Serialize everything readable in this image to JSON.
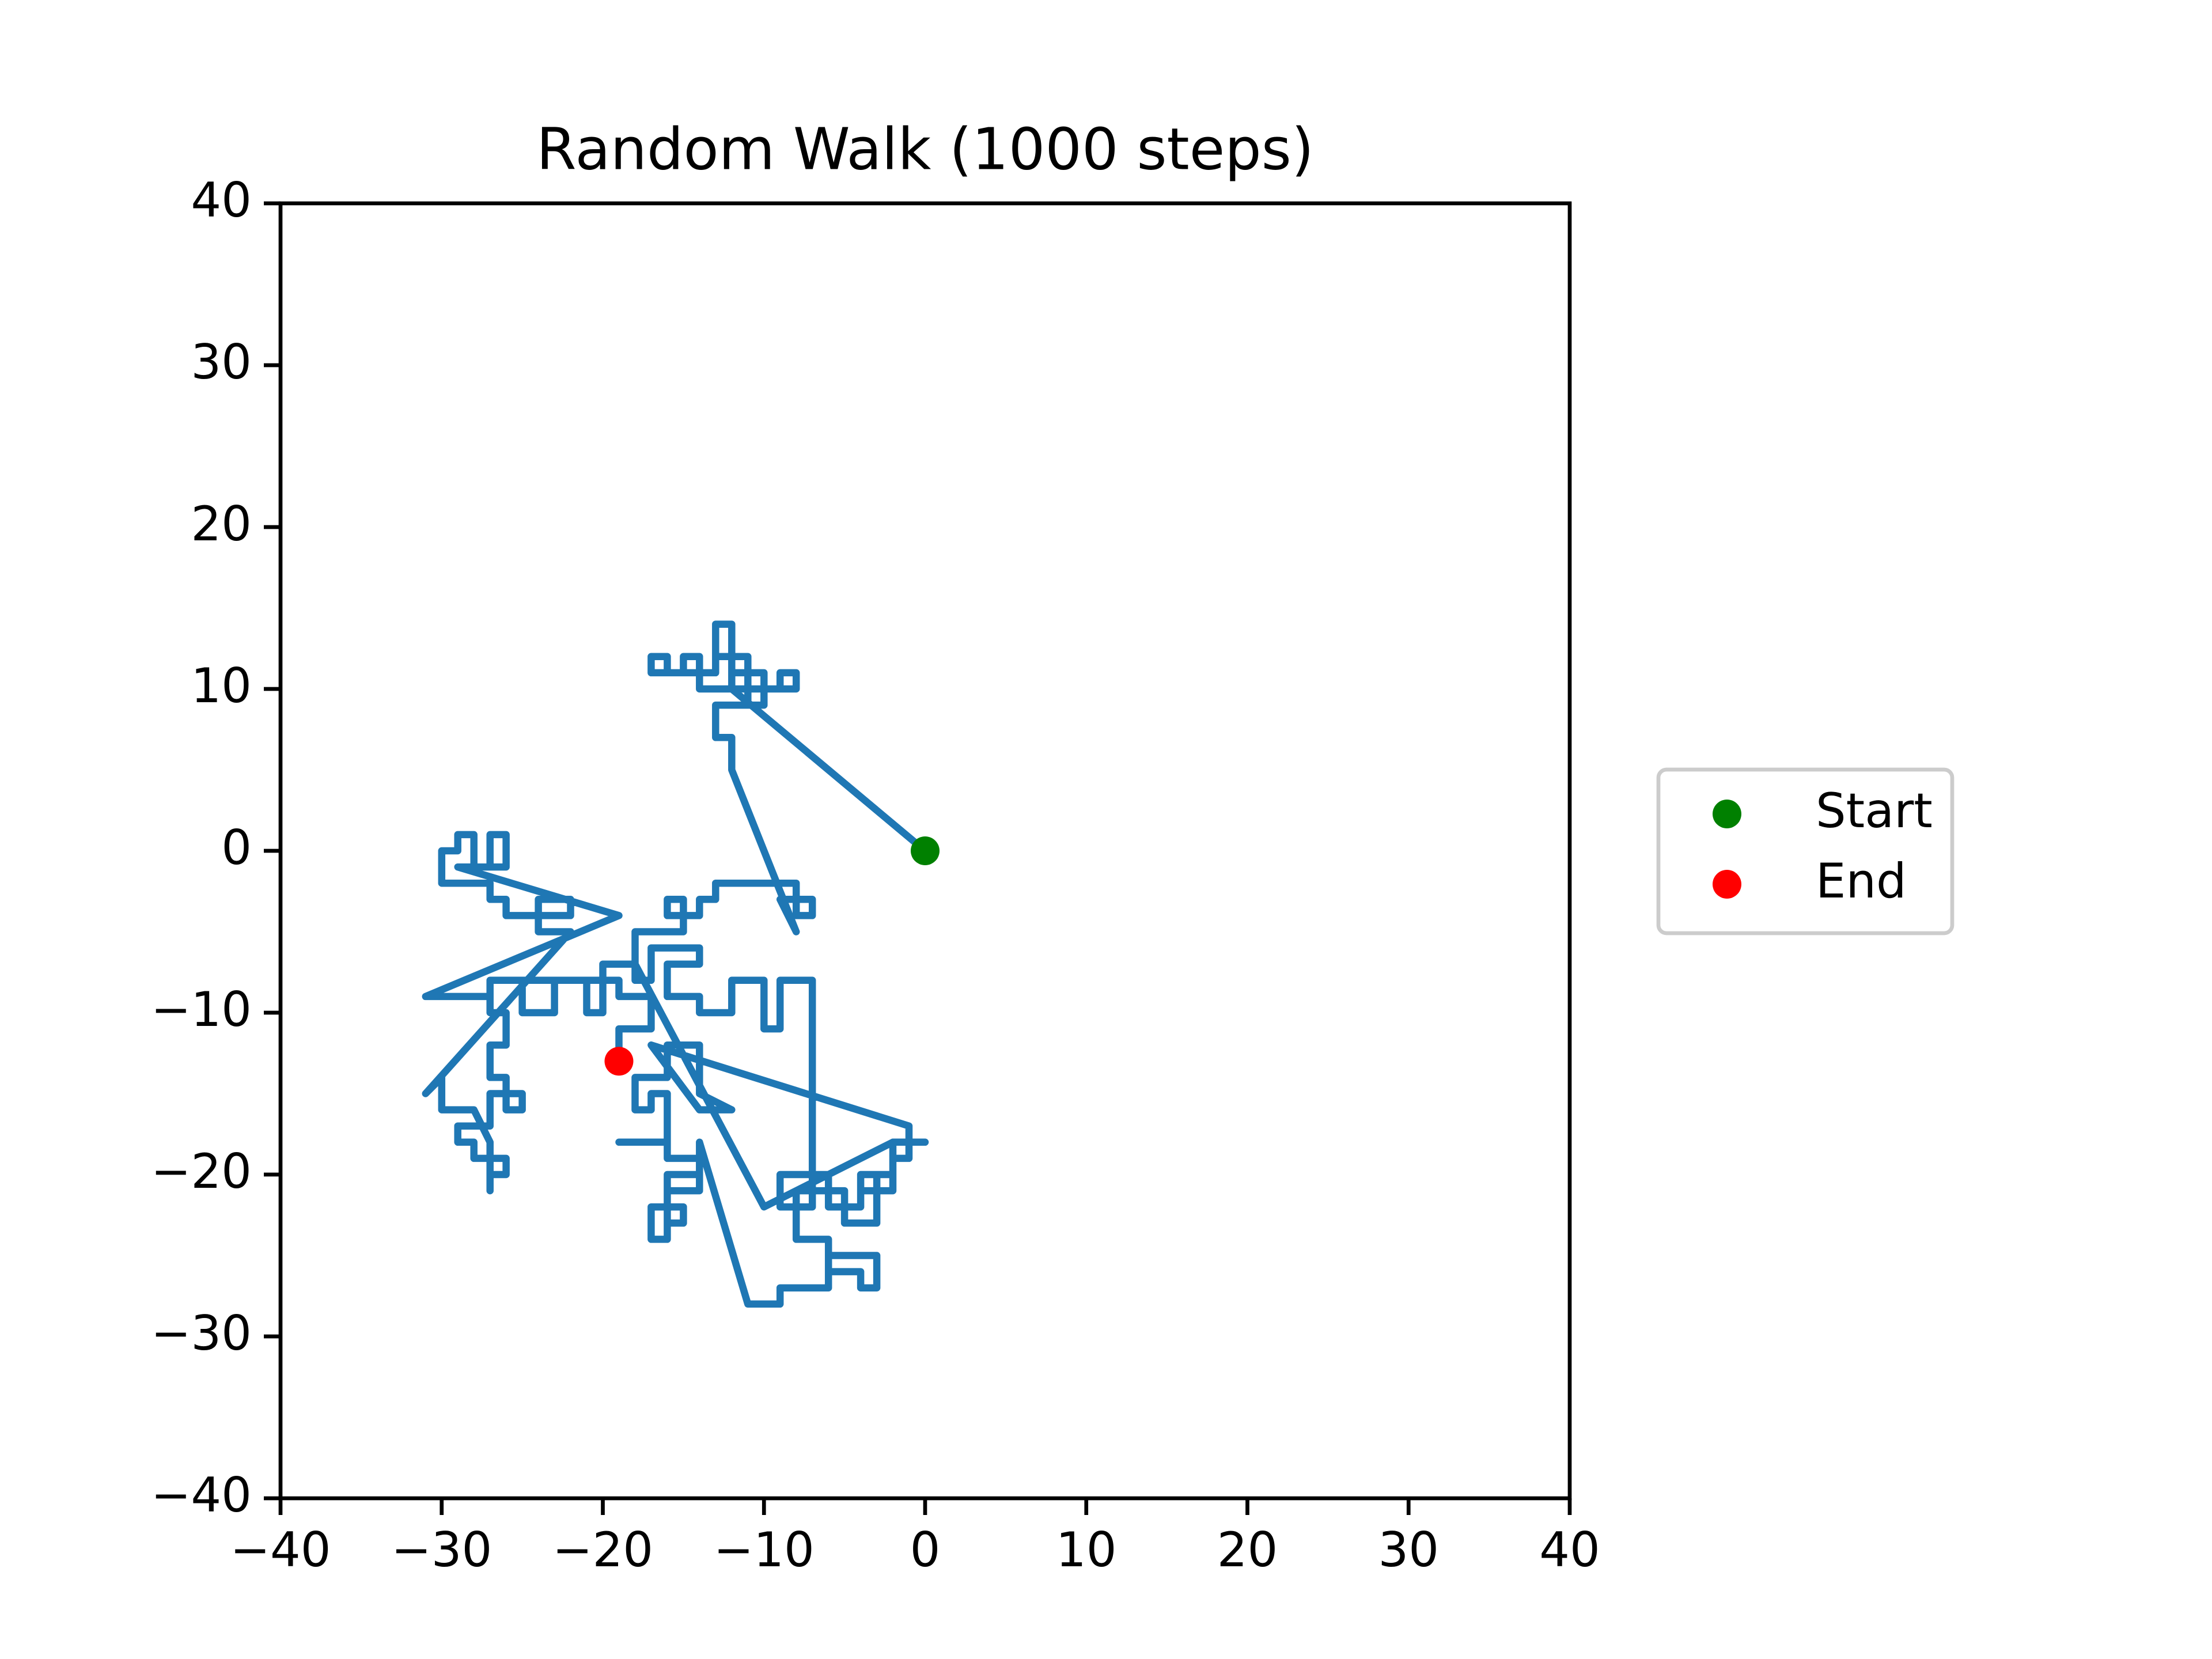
{
  "chart_data": {
    "type": "line",
    "title": "Random Walk (1000 steps)",
    "xlim": [
      -40,
      40
    ],
    "ylim": [
      -40,
      40
    ],
    "xticks": [
      {
        "value": -40,
        "label": "−40"
      },
      {
        "value": -30,
        "label": "−30"
      },
      {
        "value": -20,
        "label": "−20"
      },
      {
        "value": -10,
        "label": "−10"
      },
      0,
      10,
      20,
      30,
      40
    ],
    "yticks": [
      {
        "value": -40,
        "label": "−40"
      },
      {
        "value": -30,
        "label": "−30"
      },
      {
        "value": -20,
        "label": "−20"
      },
      {
        "value": -10,
        "label": "−10"
      },
      0,
      10,
      20,
      30,
      40
    ],
    "legend": "outside right",
    "series": [
      {
        "type": "line",
        "color": "#1f77b4",
        "x": [
          0,
          -12,
          -11,
          -11,
          -10,
          -10,
          -9,
          -9,
          -8,
          -8,
          -10,
          -10,
          -12,
          -12,
          -13,
          -13,
          -14,
          -14,
          -15,
          -15,
          -17,
          -17,
          -16,
          -16,
          -14,
          -14,
          -12,
          -12,
          -13,
          -13,
          -11,
          -11,
          -10,
          -10,
          -13,
          -13,
          -12,
          -12,
          -8,
          -9,
          -7,
          -7,
          -8,
          -8,
          -13,
          -13,
          -14,
          -14,
          -16,
          -16,
          -15,
          -15,
          -18,
          -18,
          -17,
          -17,
          -14,
          -14,
          -16,
          -16,
          -14,
          -14,
          -12,
          -12,
          -10,
          -10,
          -9,
          -9,
          -7,
          -7,
          -9,
          -9,
          -6,
          -6,
          -4,
          -4,
          -3,
          -3,
          -5,
          -5,
          -8,
          -8,
          -6,
          -6,
          -4,
          -4,
          -3,
          -3,
          -6,
          -6,
          -9,
          -9,
          -11,
          -14,
          -14,
          -16,
          -16,
          -15,
          -15,
          -17,
          -17,
          -16,
          -16,
          -14,
          -14,
          -16,
          -16,
          -19,
          -16,
          -16,
          -17,
          -17,
          -18,
          -18,
          -16,
          -16,
          -14,
          -14,
          -12,
          -14,
          -17,
          -1,
          -1,
          -2,
          -2,
          -3,
          -3,
          -4,
          -2,
          -2,
          0,
          -2,
          -10,
          -18,
          -20,
          -20,
          -21,
          -21,
          -23,
          -23,
          -25,
          -25,
          -27,
          -27,
          -26,
          -26,
          -27,
          -27,
          -26,
          -26,
          -25,
          -25,
          -27,
          -27,
          -29,
          -29,
          -28,
          -28,
          -26,
          -26,
          -27,
          -27,
          -27,
          -28,
          -30,
          -30,
          -31,
          -22,
          -24,
          -24,
          -22,
          -22,
          -26,
          -26,
          -27,
          -27,
          -30,
          -30,
          -29,
          -29,
          -28,
          -28,
          -27,
          -27,
          -26,
          -26,
          -29,
          -19,
          -31,
          -27,
          -27,
          -19,
          -19,
          -17,
          -17,
          -19,
          -19
        ],
        "y": [
          0,
          10,
          10,
          9,
          9,
          10,
          10,
          11,
          11,
          10,
          10,
          11,
          11,
          12,
          12,
          11,
          11,
          12,
          12,
          11,
          11,
          12,
          12,
          11,
          11,
          10,
          10,
          14,
          14,
          12,
          12,
          10,
          10,
          9,
          9,
          7,
          7,
          5,
          -5,
          -3,
          -3,
          -4,
          -4,
          -2,
          -2,
          -3,
          -3,
          -4,
          -4,
          -3,
          -3,
          -5,
          -5,
          -8,
          -8,
          -6,
          -6,
          -7,
          -7,
          -9,
          -9,
          -10,
          -10,
          -8,
          -8,
          -11,
          -11,
          -8,
          -8,
          -22,
          -22,
          -20,
          -20,
          -22,
          -22,
          -20,
          -20,
          -23,
          -23,
          -21,
          -21,
          -24,
          -24,
          -26,
          -26,
          -27,
          -27,
          -25,
          -25,
          -27,
          -27,
          -28,
          -28,
          -18,
          -20,
          -20,
          -23,
          -23,
          -22,
          -22,
          -24,
          -24,
          -21,
          -21,
          -19,
          -19,
          -18,
          -18,
          -18,
          -15,
          -15,
          -16,
          -16,
          -14,
          -14,
          -12,
          -12,
          -15,
          -16,
          -16,
          -12,
          -17,
          -19,
          -19,
          -20,
          -20,
          -21,
          -21,
          -21,
          -18,
          -18,
          -18,
          -22,
          -7,
          -7,
          -10,
          -10,
          -8,
          -8,
          -10,
          -10,
          -8,
          -8,
          -10,
          -10,
          -12,
          -12,
          -14,
          -14,
          -16,
          -16,
          -15,
          -15,
          -17,
          -17,
          -18,
          -18,
          -19,
          -19,
          -20,
          -20,
          -21,
          -18,
          -16,
          -16,
          -14,
          -15,
          -5,
          -5,
          -3,
          -3,
          -4,
          -4,
          -3,
          -3,
          -2,
          -2,
          0,
          0,
          1,
          1,
          -1,
          -1,
          1,
          1,
          -1,
          -1,
          -4,
          -9,
          -9,
          -8,
          -8,
          -9,
          -9,
          -11,
          -11,
          -13
        ]
      },
      {
        "type": "scatter",
        "name": "Start",
        "color": "green",
        "x": [
          0
        ],
        "y": [
          0
        ]
      },
      {
        "type": "scatter",
        "name": "End",
        "color": "red",
        "x": [
          -19
        ],
        "y": [
          -13
        ]
      }
    ]
  }
}
